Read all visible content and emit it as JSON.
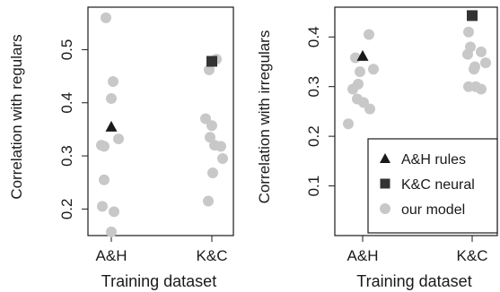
{
  "chart_data": [
    {
      "type": "scatter",
      "xlabel": "Training dataset",
      "ylabel": "Correlation with regulars",
      "categories": [
        "A&H",
        "K&C"
      ],
      "ylim": [
        0.15,
        0.58
      ],
      "yticks": [
        0.2,
        0.3,
        0.4,
        0.5
      ],
      "ytick_labels": [
        "0.2",
        "0.3",
        "0.4",
        "0.5"
      ],
      "series": [
        {
          "name": "A&H rules",
          "marker": "triangle",
          "color": "#1a1a1a",
          "points": [
            {
              "category": "A&H",
              "y": 0.355
            }
          ]
        },
        {
          "name": "K&C neural",
          "marker": "square",
          "color": "#333333",
          "points": [
            {
              "category": "K&C",
              "y": 0.478
            }
          ]
        },
        {
          "name": "our model",
          "marker": "circle",
          "color": "#c8c8c8",
          "points": [
            {
              "category": "A&H",
              "y": 0.56
            },
            {
              "category": "A&H",
              "y": 0.44
            },
            {
              "category": "A&H",
              "y": 0.408
            },
            {
              "category": "A&H",
              "y": 0.332
            },
            {
              "category": "A&H",
              "y": 0.32
            },
            {
              "category": "A&H",
              "y": 0.318
            },
            {
              "category": "A&H",
              "y": 0.255
            },
            {
              "category": "A&H",
              "y": 0.205
            },
            {
              "category": "A&H",
              "y": 0.195
            },
            {
              "category": "A&H",
              "y": 0.157
            },
            {
              "category": "K&C",
              "y": 0.482
            },
            {
              "category": "K&C",
              "y": 0.462
            },
            {
              "category": "K&C",
              "y": 0.37
            },
            {
              "category": "K&C",
              "y": 0.357
            },
            {
              "category": "K&C",
              "y": 0.335
            },
            {
              "category": "K&C",
              "y": 0.32
            },
            {
              "category": "K&C",
              "y": 0.318
            },
            {
              "category": "K&C",
              "y": 0.295
            },
            {
              "category": "K&C",
              "y": 0.268
            },
            {
              "category": "K&C",
              "y": 0.215
            }
          ]
        }
      ],
      "legend": false
    },
    {
      "type": "scatter",
      "xlabel": "Training dataset",
      "ylabel": "Correlation with irregulars",
      "categories": [
        "A&H",
        "K&C"
      ],
      "ylim": [
        0.0,
        0.46
      ],
      "yticks": [
        0.1,
        0.2,
        0.3,
        0.4
      ],
      "ytick_labels": [
        "0.1",
        "0.2",
        "0.3",
        "0.4"
      ],
      "series": [
        {
          "name": "A&H rules",
          "marker": "triangle",
          "color": "#1a1a1a",
          "points": [
            {
              "category": "A&H",
              "y": 0.362
            }
          ]
        },
        {
          "name": "K&C neural",
          "marker": "square",
          "color": "#333333",
          "points": [
            {
              "category": "K&C",
              "y": 0.443
            }
          ]
        },
        {
          "name": "our model",
          "marker": "circle",
          "color": "#c8c8c8",
          "points": [
            {
              "category": "A&H",
              "y": 0.405
            },
            {
              "category": "A&H",
              "y": 0.358
            },
            {
              "category": "A&H",
              "y": 0.335
            },
            {
              "category": "A&H",
              "y": 0.33
            },
            {
              "category": "A&H",
              "y": 0.305
            },
            {
              "category": "A&H",
              "y": 0.295
            },
            {
              "category": "A&H",
              "y": 0.275
            },
            {
              "category": "A&H",
              "y": 0.268
            },
            {
              "category": "A&H",
              "y": 0.255
            },
            {
              "category": "A&H",
              "y": 0.225
            },
            {
              "category": "K&C",
              "y": 0.41
            },
            {
              "category": "K&C",
              "y": 0.38
            },
            {
              "category": "K&C",
              "y": 0.37
            },
            {
              "category": "K&C",
              "y": 0.365
            },
            {
              "category": "K&C",
              "y": 0.348
            },
            {
              "category": "K&C",
              "y": 0.34
            },
            {
              "category": "K&C",
              "y": 0.335
            },
            {
              "category": "K&C",
              "y": 0.3
            },
            {
              "category": "K&C",
              "y": 0.3
            },
            {
              "category": "K&C",
              "y": 0.295
            }
          ]
        }
      ],
      "legend": true,
      "legend_position": "bottom-right",
      "legend_entries": [
        {
          "label": "A&H rules",
          "marker": "triangle"
        },
        {
          "label": "K&C neural",
          "marker": "square"
        },
        {
          "label": "our model",
          "marker": "circle"
        }
      ]
    }
  ]
}
